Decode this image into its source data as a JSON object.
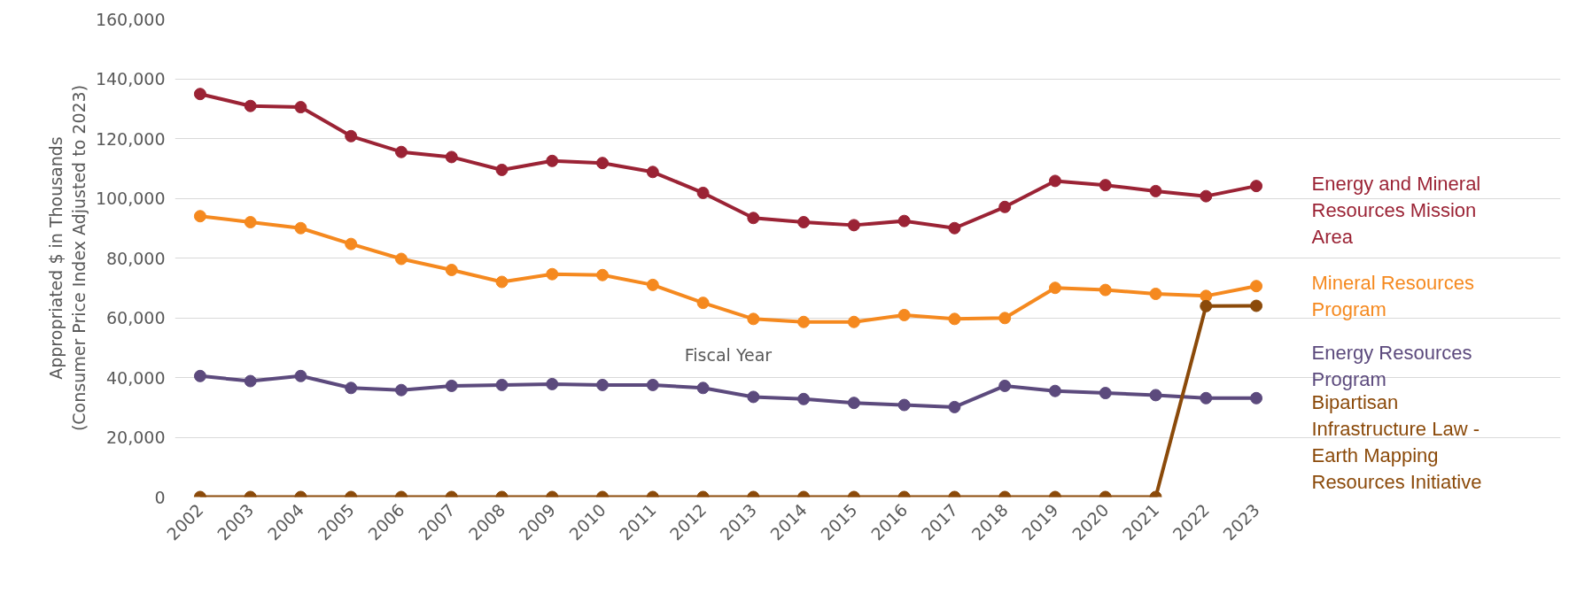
{
  "chart_data": {
    "type": "line",
    "xlabel": "Fiscal Year",
    "ylabel": "Appropriated $ in Thousands\n(Consumer Price Index Adjusted to 2023)",
    "categories": [
      "2002",
      "2003",
      "2004",
      "2005",
      "2006",
      "2007",
      "2008",
      "2009",
      "2010",
      "2011",
      "2012",
      "2013",
      "2014",
      "2015",
      "2016",
      "2017",
      "2018",
      "2019",
      "2020",
      "2021",
      "2022",
      "2023"
    ],
    "series": [
      {
        "name": "Energy and Mineral Resources Mission Area",
        "color": "#9b2335",
        "values": [
          134900,
          130900,
          130500,
          120800,
          115500,
          113800,
          109500,
          112500,
          111800,
          108800,
          101800,
          93400,
          92000,
          91000,
          92400,
          90000,
          97100,
          105800,
          104400,
          102400,
          100700,
          104100
        ]
      },
      {
        "name": "Mineral Resources Program",
        "color": "#f5891f",
        "values": [
          94000,
          92000,
          90000,
          84700,
          79700,
          76000,
          72000,
          74600,
          74300,
          71000,
          65000,
          59600,
          58600,
          58600,
          60900,
          59600,
          59900,
          70000,
          69300,
          68000,
          67300,
          70600
        ]
      },
      {
        "name": "Energy Resources Program",
        "color": "#5c4a7d",
        "values": [
          40500,
          38800,
          40500,
          36500,
          35800,
          37200,
          37500,
          37800,
          37500,
          37500,
          36500,
          33500,
          32800,
          31500,
          30800,
          30100,
          37200,
          35500,
          34800,
          34100,
          33100,
          33100
        ]
      },
      {
        "name": "Bipartisan Infrastructure Law - Earth Mapping Resources Initiative",
        "color": "#8b4a0a",
        "values": [
          0,
          0,
          0,
          0,
          0,
          0,
          0,
          0,
          0,
          0,
          0,
          0,
          0,
          0,
          0,
          0,
          0,
          0,
          0,
          0,
          63900,
          64000
        ]
      }
    ],
    "ylim": [
      0,
      160000
    ],
    "yticks": [
      {
        "value": 0,
        "label": "0"
      },
      {
        "value": 20000,
        "label": "20,000"
      },
      {
        "value": 40000,
        "label": "40,000"
      },
      {
        "value": 60000,
        "label": "60,000"
      },
      {
        "value": 80000,
        "label": "80,000"
      },
      {
        "value": 100000,
        "label": "100,000"
      },
      {
        "value": 120000,
        "label": "120,000"
      },
      {
        "value": 140000,
        "label": "140,000"
      },
      {
        "value": 160000,
        "label": "160,000"
      }
    ],
    "grid": "y",
    "legend": false,
    "marker": "circle",
    "line_style": "solid"
  }
}
